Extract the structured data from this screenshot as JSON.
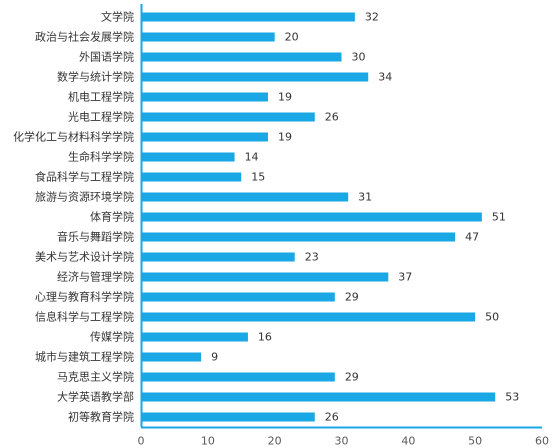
{
  "chart_data": {
    "type": "bar",
    "orientation": "horizontal",
    "categories": [
      "文学院",
      "政治与社会发展学院",
      "外国语学院",
      "数学与统计学院",
      "机电工程学院",
      "光电工程学院",
      "化学化工与材料科学学院",
      "生命科学学院",
      "食品科学与工程学院",
      "旅游与资源环境学院",
      "体育学院",
      "音乐与舞蹈学院",
      "美术与艺术设计学院",
      "经济与管理学院",
      "心理与教育科学学院",
      "信息科学与工程学院",
      "传媒学院",
      "城市与建筑工程学院",
      "马克思主义学院",
      "大学英语教学部",
      "初等教育学院"
    ],
    "values": [
      32,
      20,
      30,
      34,
      19,
      26,
      19,
      14,
      15,
      31,
      51,
      47,
      23,
      37,
      29,
      50,
      16,
      9,
      29,
      53,
      26
    ],
    "data_labels": [
      "32",
      "20",
      "30",
      "34",
      "19",
      "26",
      "19",
      "14",
      "15",
      "31",
      "51",
      "47",
      "23",
      "37",
      "29",
      "50",
      "16",
      "9",
      "29",
      "53",
      "26"
    ],
    "xlim": [
      0,
      60
    ],
    "x_ticks": [
      "0",
      "10",
      "20",
      "30",
      "40",
      "50",
      "60"
    ],
    "grid": false,
    "legend": "none",
    "bar_color": "#1aa7e6",
    "axis_color": "#1aa7e6",
    "title": "",
    "xlabel": "",
    "ylabel": ""
  }
}
